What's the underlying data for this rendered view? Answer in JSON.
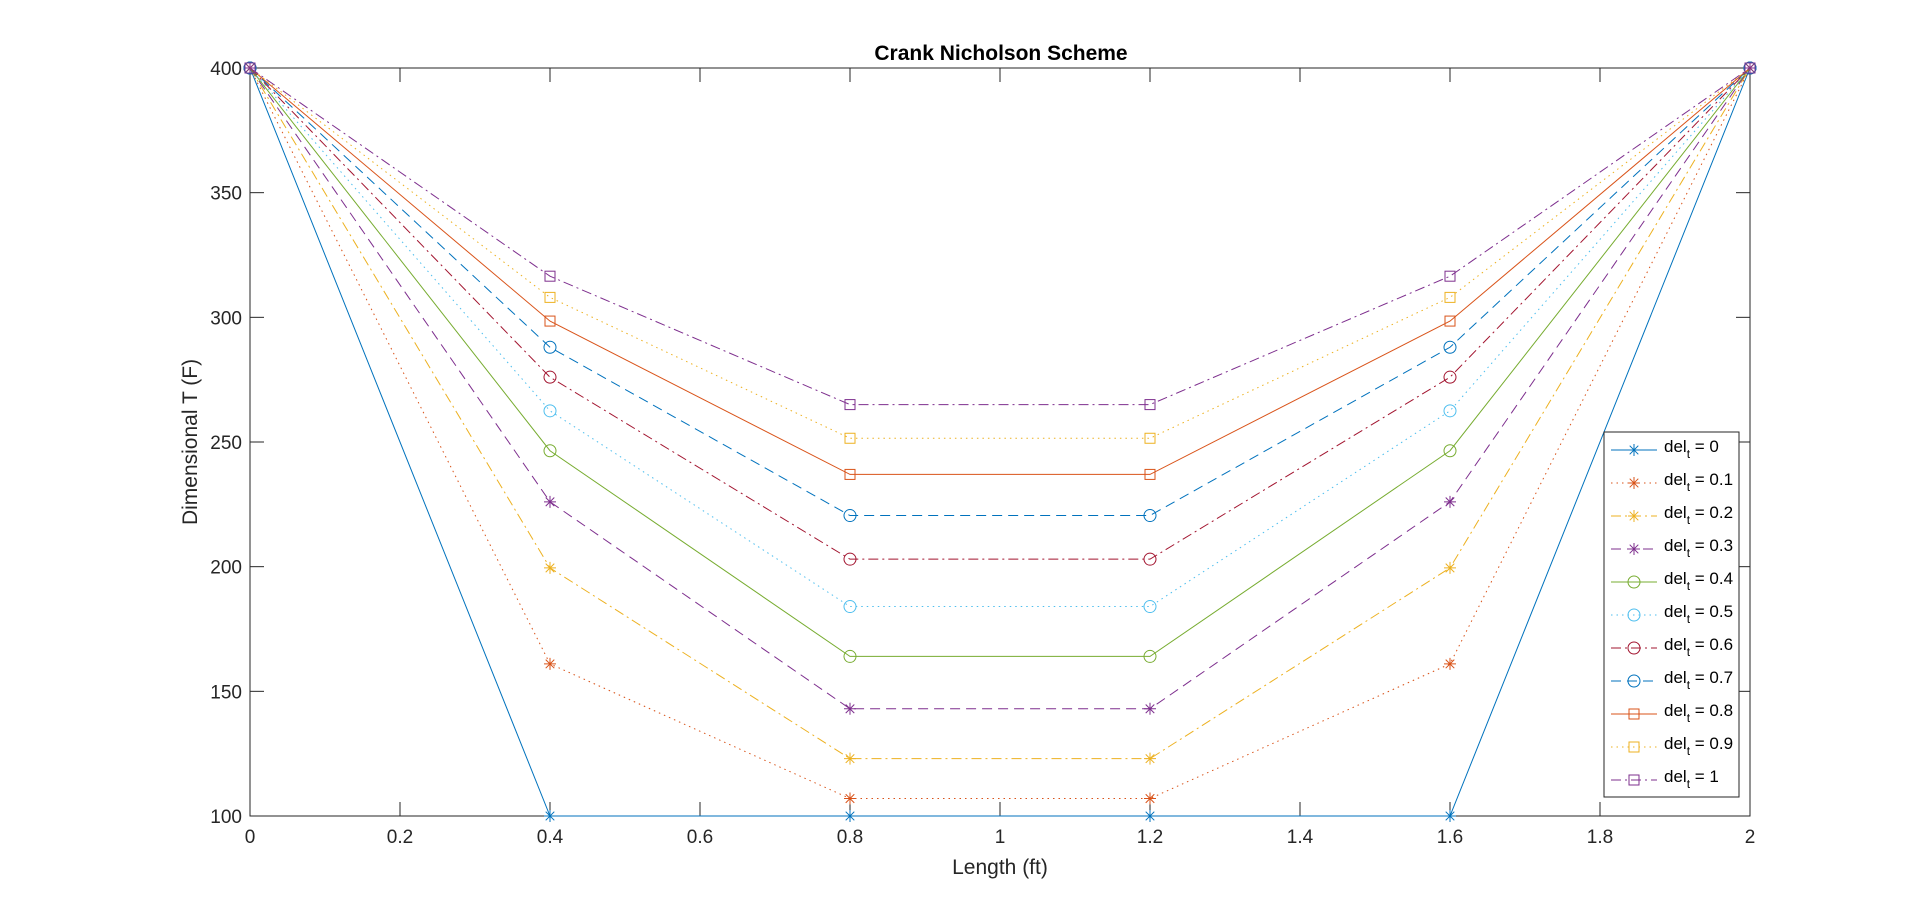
{
  "chart_data": {
    "type": "line",
    "title": "Crank Nicholson Scheme",
    "xlabel": "Length (ft)",
    "ylabel": "Dimensional T (F)",
    "xlim": [
      0,
      2
    ],
    "ylim": [
      100,
      400
    ],
    "xticks": [
      "0",
      "0.2",
      "0.4",
      "0.6",
      "0.8",
      "1",
      "1.2",
      "1.4",
      "1.6",
      "1.8",
      "2"
    ],
    "yticks": [
      "100",
      "150",
      "200",
      "250",
      "300",
      "350",
      "400"
    ],
    "grid": false,
    "legend_position": "bottom-right",
    "x": [
      0,
      0.4,
      0.8,
      1.2,
      1.6,
      2
    ],
    "series": [
      {
        "legend_main": "del",
        "legend_sub": "t",
        "legend_value": " = 0",
        "color": "#0072BD",
        "dash": "solid",
        "marker": "asterisk",
        "values": [
          400,
          100,
          100,
          100,
          100,
          400
        ]
      },
      {
        "legend_main": "del",
        "legend_sub": "t",
        "legend_value": " = 0.1",
        "color": "#D95319",
        "dash": "dotted",
        "marker": "asterisk",
        "values": [
          400,
          161,
          107,
          107,
          161,
          400
        ]
      },
      {
        "legend_main": "del",
        "legend_sub": "t",
        "legend_value": " = 0.2",
        "color": "#EDB120",
        "dash": "dashdot",
        "marker": "asterisk",
        "values": [
          400,
          199.5,
          123,
          123,
          199.5,
          400
        ]
      },
      {
        "legend_main": "del",
        "legend_sub": "t",
        "legend_value": " = 0.3",
        "color": "#7E2F8E",
        "dash": "dashed",
        "marker": "asterisk",
        "values": [
          400,
          226,
          143,
          143,
          226,
          400
        ]
      },
      {
        "legend_main": "del",
        "legend_sub": "t",
        "legend_value": " = 0.4",
        "color": "#77AC30",
        "dash": "solid",
        "marker": "circle",
        "values": [
          400,
          246.5,
          164,
          164,
          246.5,
          400
        ]
      },
      {
        "legend_main": "del",
        "legend_sub": "t",
        "legend_value": " = 0.5",
        "color": "#4DBEEE",
        "dash": "dotted",
        "marker": "circle",
        "values": [
          400,
          262.5,
          184,
          184,
          262.5,
          400
        ]
      },
      {
        "legend_main": "del",
        "legend_sub": "t",
        "legend_value": " = 0.6",
        "color": "#A2142F",
        "dash": "dashdot",
        "marker": "circle",
        "values": [
          400,
          276,
          203,
          203,
          276,
          400
        ]
      },
      {
        "legend_main": "del",
        "legend_sub": "t",
        "legend_value": " = 0.7",
        "color": "#0072BD",
        "dash": "dashed",
        "marker": "circle",
        "values": [
          400,
          288,
          220.5,
          220.5,
          288,
          400
        ]
      },
      {
        "legend_main": "del",
        "legend_sub": "t",
        "legend_value": " = 0.8",
        "color": "#D95319",
        "dash": "solid",
        "marker": "square",
        "values": [
          400,
          298.5,
          237,
          237,
          298.5,
          400
        ]
      },
      {
        "legend_main": "del",
        "legend_sub": "t",
        "legend_value": " = 0.9",
        "color": "#EDB120",
        "dash": "dotted",
        "marker": "square",
        "values": [
          400,
          308,
          251.5,
          251.5,
          308,
          400
        ]
      },
      {
        "legend_main": "del",
        "legend_sub": "t",
        "legend_value": " = 1",
        "color": "#7E2F8E",
        "dash": "dashdot",
        "marker": "square",
        "values": [
          400,
          316.5,
          265,
          265,
          316.5,
          400
        ]
      }
    ]
  }
}
